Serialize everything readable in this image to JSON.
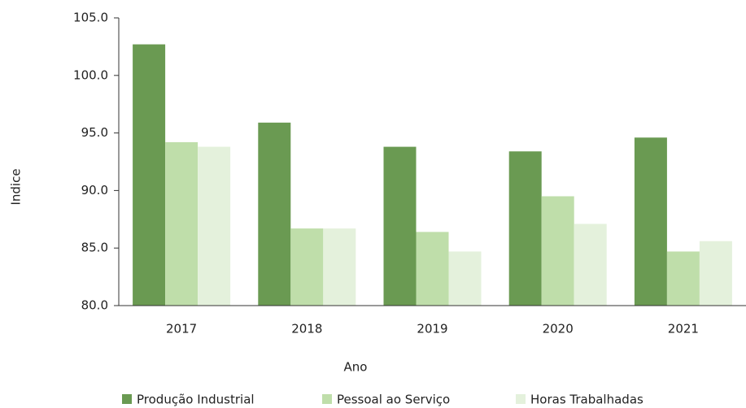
{
  "chart_data": {
    "type": "bar",
    "x_label": "Ano",
    "y_label": "Indice",
    "categories": [
      "2017",
      "2018",
      "2019",
      "2020",
      "2021"
    ],
    "series": [
      {
        "name": "Produção Industrial",
        "color": "#6a9a52",
        "values": [
          102.7,
          95.9,
          93.8,
          93.4,
          94.6
        ]
      },
      {
        "name": "Pessoal ao Serviço",
        "color": "#bfdeaa",
        "values": [
          94.2,
          86.7,
          86.4,
          89.5,
          84.7
        ]
      },
      {
        "name": "Horas Trabalhadas",
        "color": "#e4f1dc",
        "values": [
          93.8,
          86.7,
          84.7,
          87.1,
          85.6
        ]
      }
    ],
    "ylim": [
      80,
      105
    ],
    "yticks": [
      {
        "value": 80,
        "label": "80.0"
      },
      {
        "value": 85,
        "label": "85.0"
      },
      {
        "value": 90,
        "label": "90.0"
      },
      {
        "value": 95,
        "label": "95.0"
      },
      {
        "value": 100,
        "label": "100.0"
      },
      {
        "value": 105,
        "label": "105.0"
      }
    ],
    "legend": "bottom"
  }
}
